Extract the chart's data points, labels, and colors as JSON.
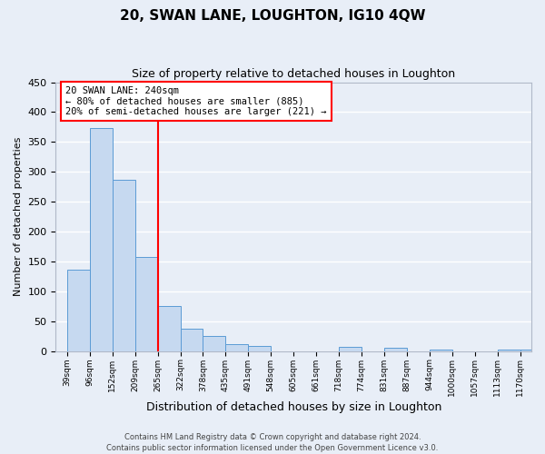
{
  "title": "20, SWAN LANE, LOUGHTON, IG10 4QW",
  "subtitle": "Size of property relative to detached houses in Loughton",
  "xlabel": "Distribution of detached houses by size in Loughton",
  "ylabel": "Number of detached properties",
  "categories": [
    "39sqm",
    "96sqm",
    "152sqm",
    "209sqm",
    "265sqm",
    "322sqm",
    "378sqm",
    "435sqm",
    "491sqm",
    "548sqm",
    "605sqm",
    "661sqm",
    "718sqm",
    "774sqm",
    "831sqm",
    "887sqm",
    "944sqm",
    "1000sqm",
    "1057sqm",
    "1113sqm",
    "1170sqm"
  ],
  "values": [
    136,
    373,
    287,
    157,
    75,
    38,
    25,
    11,
    8,
    0,
    0,
    0,
    7,
    0,
    5,
    0,
    3,
    0,
    0,
    3,
    3
  ],
  "bar_color": "#c6d9f0",
  "bar_edge_color": "#5b9bd5",
  "vline_color": "red",
  "vline_pos": 3.5,
  "annotation_title": "20 SWAN LANE: 240sqm",
  "annotation_line1": "← 80% of detached houses are smaller (885)",
  "annotation_line2": "20% of semi-detached houses are larger (221) →",
  "ylim": [
    0,
    450
  ],
  "yticks": [
    0,
    50,
    100,
    150,
    200,
    250,
    300,
    350,
    400,
    450
  ],
  "footer1": "Contains HM Land Registry data © Crown copyright and database right 2024.",
  "footer2": "Contains public sector information licensed under the Open Government Licence v3.0.",
  "bg_color": "#e8eef7",
  "grid_color": "#ffffff",
  "title_fontsize": 11,
  "subtitle_fontsize": 9,
  "ylabel_fontsize": 8,
  "xlabel_fontsize": 9
}
